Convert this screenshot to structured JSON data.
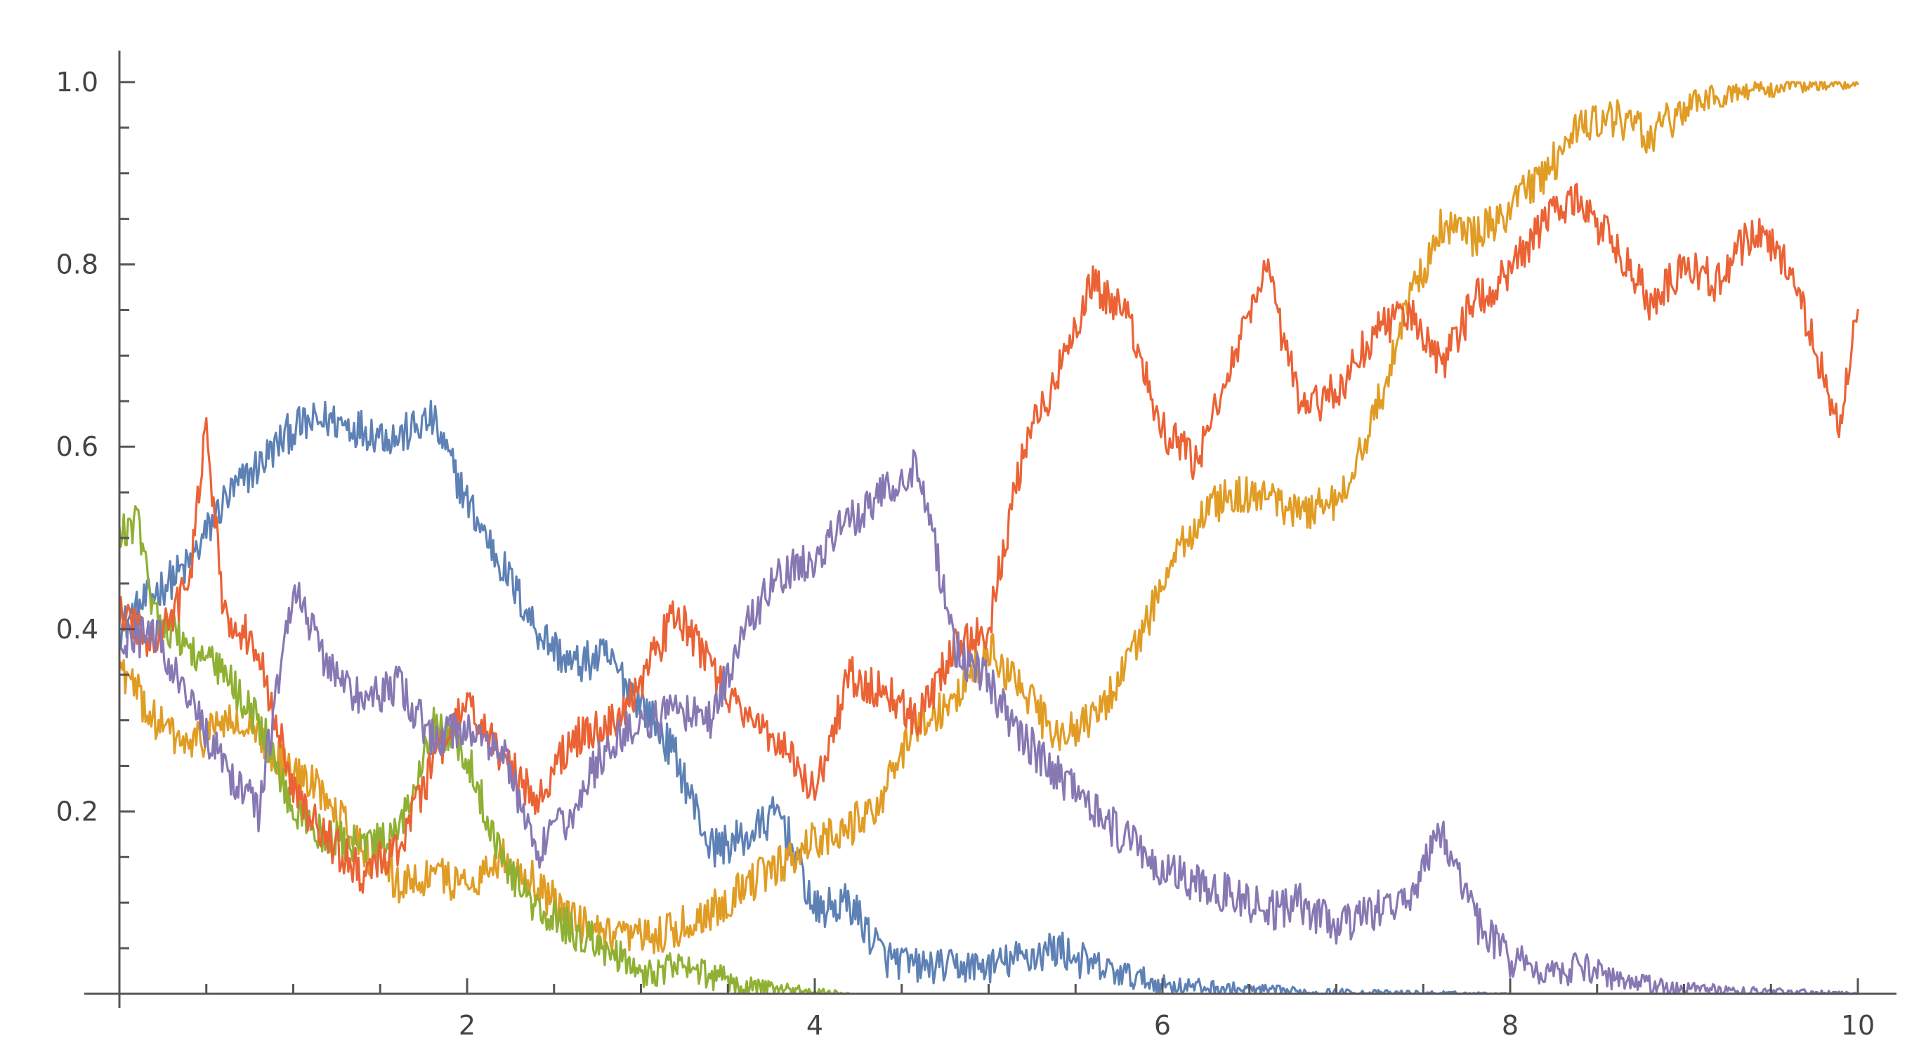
{
  "chart_data": {
    "type": "line",
    "title": "",
    "xlabel": "",
    "ylabel": "",
    "xlim": [
      0,
      10
    ],
    "ylim": [
      0,
      1.04
    ],
    "grid": false,
    "legend": "none",
    "x_ticks": [
      {
        "value": 2,
        "label": "2"
      },
      {
        "value": 4,
        "label": "4"
      },
      {
        "value": 6,
        "label": "6"
      },
      {
        "value": 8,
        "label": "8"
      },
      {
        "value": 10,
        "label": "10"
      }
    ],
    "y_ticks": [
      {
        "value": 0.2,
        "label": "0.2"
      },
      {
        "value": 0.4,
        "label": "0.4"
      },
      {
        "value": 0.6,
        "label": "0.6"
      },
      {
        "value": 0.8,
        "label": "0.8"
      },
      {
        "value": 1.0,
        "label": "1.0"
      }
    ],
    "series": [
      {
        "color": "#5e81b5",
        "x": [
          0,
          0.2,
          0.4,
          0.6,
          0.8,
          1.0,
          1.2,
          1.4,
          1.6,
          1.8,
          2.0,
          2.2,
          2.4,
          2.6,
          2.8,
          3.0,
          3.2,
          3.4,
          3.6,
          3.8,
          4.0,
          4.2,
          4.4,
          4.6,
          4.8,
          5.0,
          5.2,
          5.4,
          5.6,
          5.8,
          6.0,
          6.4,
          6.8,
          7.2,
          8.0,
          10.0
        ],
        "y": [
          0.4,
          0.44,
          0.47,
          0.54,
          0.58,
          0.62,
          0.63,
          0.62,
          0.61,
          0.63,
          0.54,
          0.47,
          0.4,
          0.36,
          0.37,
          0.32,
          0.26,
          0.16,
          0.17,
          0.2,
          0.09,
          0.1,
          0.04,
          0.03,
          0.03,
          0.03,
          0.04,
          0.05,
          0.03,
          0.02,
          0.01,
          0.005,
          0.002,
          0.001,
          0.0,
          0.0
        ]
      },
      {
        "color": "#e19c24",
        "x": [
          0,
          0.2,
          0.4,
          0.6,
          0.8,
          1.0,
          1.2,
          1.4,
          1.6,
          1.8,
          2.0,
          2.2,
          2.4,
          2.6,
          2.8,
          3.0,
          3.2,
          3.4,
          3.6,
          3.8,
          4.0,
          4.2,
          4.4,
          4.6,
          4.8,
          5.0,
          5.2,
          5.4,
          5.6,
          5.8,
          6.0,
          6.2,
          6.4,
          6.6,
          6.8,
          7.0,
          7.2,
          7.4,
          7.6,
          7.8,
          8.0,
          8.2,
          8.4,
          8.6,
          8.8,
          9.0,
          9.2,
          9.4,
          9.6,
          9.8,
          10.0
        ],
        "y": [
          0.36,
          0.3,
          0.27,
          0.3,
          0.28,
          0.24,
          0.22,
          0.16,
          0.12,
          0.13,
          0.12,
          0.15,
          0.12,
          0.08,
          0.06,
          0.06,
          0.07,
          0.09,
          0.12,
          0.14,
          0.17,
          0.18,
          0.22,
          0.3,
          0.32,
          0.38,
          0.33,
          0.28,
          0.3,
          0.36,
          0.45,
          0.52,
          0.55,
          0.54,
          0.53,
          0.54,
          0.62,
          0.75,
          0.84,
          0.83,
          0.86,
          0.9,
          0.95,
          0.96,
          0.94,
          0.97,
          0.985,
          0.99,
          0.995,
          0.997,
          0.998
        ]
      },
      {
        "color": "#8fb032",
        "x": [
          0,
          0.1,
          0.2,
          0.4,
          0.6,
          0.8,
          1.0,
          1.2,
          1.4,
          1.6,
          1.8,
          2.0,
          2.2,
          2.4,
          2.6,
          2.8,
          3.0,
          3.2,
          3.4,
          3.6,
          3.8,
          4.0,
          4.2
        ],
        "y": [
          0.5,
          0.52,
          0.42,
          0.38,
          0.35,
          0.3,
          0.2,
          0.17,
          0.16,
          0.17,
          0.3,
          0.26,
          0.15,
          0.09,
          0.07,
          0.05,
          0.02,
          0.03,
          0.02,
          0.01,
          0.005,
          0.002,
          0.0
        ]
      },
      {
        "color": "#eb6235",
        "x": [
          0,
          0.2,
          0.4,
          0.5,
          0.6,
          0.8,
          1.0,
          1.2,
          1.4,
          1.6,
          1.8,
          2.0,
          2.2,
          2.4,
          2.6,
          2.8,
          3.0,
          3.2,
          3.4,
          3.6,
          3.8,
          4.0,
          4.2,
          4.4,
          4.6,
          4.8,
          5.0,
          5.2,
          5.4,
          5.6,
          5.8,
          6.0,
          6.2,
          6.4,
          6.6,
          6.8,
          7.0,
          7.2,
          7.4,
          7.6,
          7.8,
          8.0,
          8.2,
          8.4,
          8.6,
          8.8,
          9.0,
          9.2,
          9.4,
          9.6,
          9.8,
          9.9,
          10.0
        ],
        "y": [
          0.42,
          0.38,
          0.45,
          0.62,
          0.42,
          0.38,
          0.22,
          0.17,
          0.13,
          0.16,
          0.25,
          0.32,
          0.26,
          0.21,
          0.28,
          0.29,
          0.34,
          0.42,
          0.36,
          0.3,
          0.28,
          0.22,
          0.35,
          0.33,
          0.3,
          0.38,
          0.4,
          0.6,
          0.68,
          0.78,
          0.74,
          0.62,
          0.58,
          0.7,
          0.79,
          0.64,
          0.66,
          0.72,
          0.75,
          0.69,
          0.76,
          0.79,
          0.85,
          0.87,
          0.82,
          0.76,
          0.8,
          0.78,
          0.84,
          0.8,
          0.68,
          0.62,
          0.75
        ]
      },
      {
        "color": "#8778b3",
        "x": [
          0,
          0.2,
          0.4,
          0.6,
          0.8,
          1.0,
          1.2,
          1.4,
          1.6,
          1.8,
          2.0,
          2.2,
          2.4,
          2.6,
          2.8,
          3.0,
          3.2,
          3.4,
          3.6,
          3.8,
          4.0,
          4.2,
          4.4,
          4.6,
          4.8,
          5.0,
          5.2,
          5.4,
          5.6,
          5.8,
          6.0,
          6.2,
          6.4,
          6.6,
          6.8,
          7.0,
          7.2,
          7.4,
          7.6,
          7.8,
          8.0,
          8.2,
          8.4,
          8.6,
          8.8,
          9.0,
          9.5,
          10.0
        ],
        "y": [
          0.38,
          0.4,
          0.32,
          0.25,
          0.2,
          0.45,
          0.36,
          0.32,
          0.34,
          0.28,
          0.29,
          0.27,
          0.15,
          0.2,
          0.27,
          0.3,
          0.31,
          0.3,
          0.4,
          0.46,
          0.48,
          0.52,
          0.55,
          0.58,
          0.38,
          0.34,
          0.28,
          0.24,
          0.2,
          0.17,
          0.14,
          0.12,
          0.11,
          0.09,
          0.1,
          0.07,
          0.09,
          0.1,
          0.18,
          0.08,
          0.04,
          0.02,
          0.03,
          0.015,
          0.01,
          0.005,
          0.002,
          0.0
        ]
      }
    ]
  }
}
